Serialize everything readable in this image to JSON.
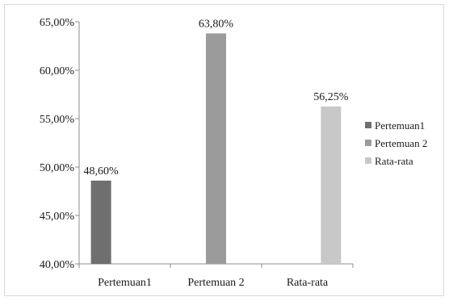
{
  "chart_data": {
    "type": "bar",
    "categories": [
      "Pertemuan1",
      "Pertemuan 2",
      "Rata-rata"
    ],
    "series": [
      {
        "name": "Pertemuan1",
        "values": [
          48.6,
          null,
          null
        ],
        "color": "#6f6f6f"
      },
      {
        "name": "Pertemuan 2",
        "values": [
          null,
          63.8,
          null
        ],
        "color": "#9b9b9b"
      },
      {
        "name": "Rata-rata",
        "values": [
          null,
          null,
          56.25
        ],
        "color": "#c8c8c8"
      }
    ],
    "data_labels": [
      "48,60%",
      "63,80%",
      "56,25%"
    ],
    "yticks": [
      "40,00%",
      "45,00%",
      "50,00%",
      "55,00%",
      "60,00%",
      "65,00%"
    ],
    "ylim": [
      40,
      65
    ],
    "grid": false,
    "legend_position": "right"
  }
}
